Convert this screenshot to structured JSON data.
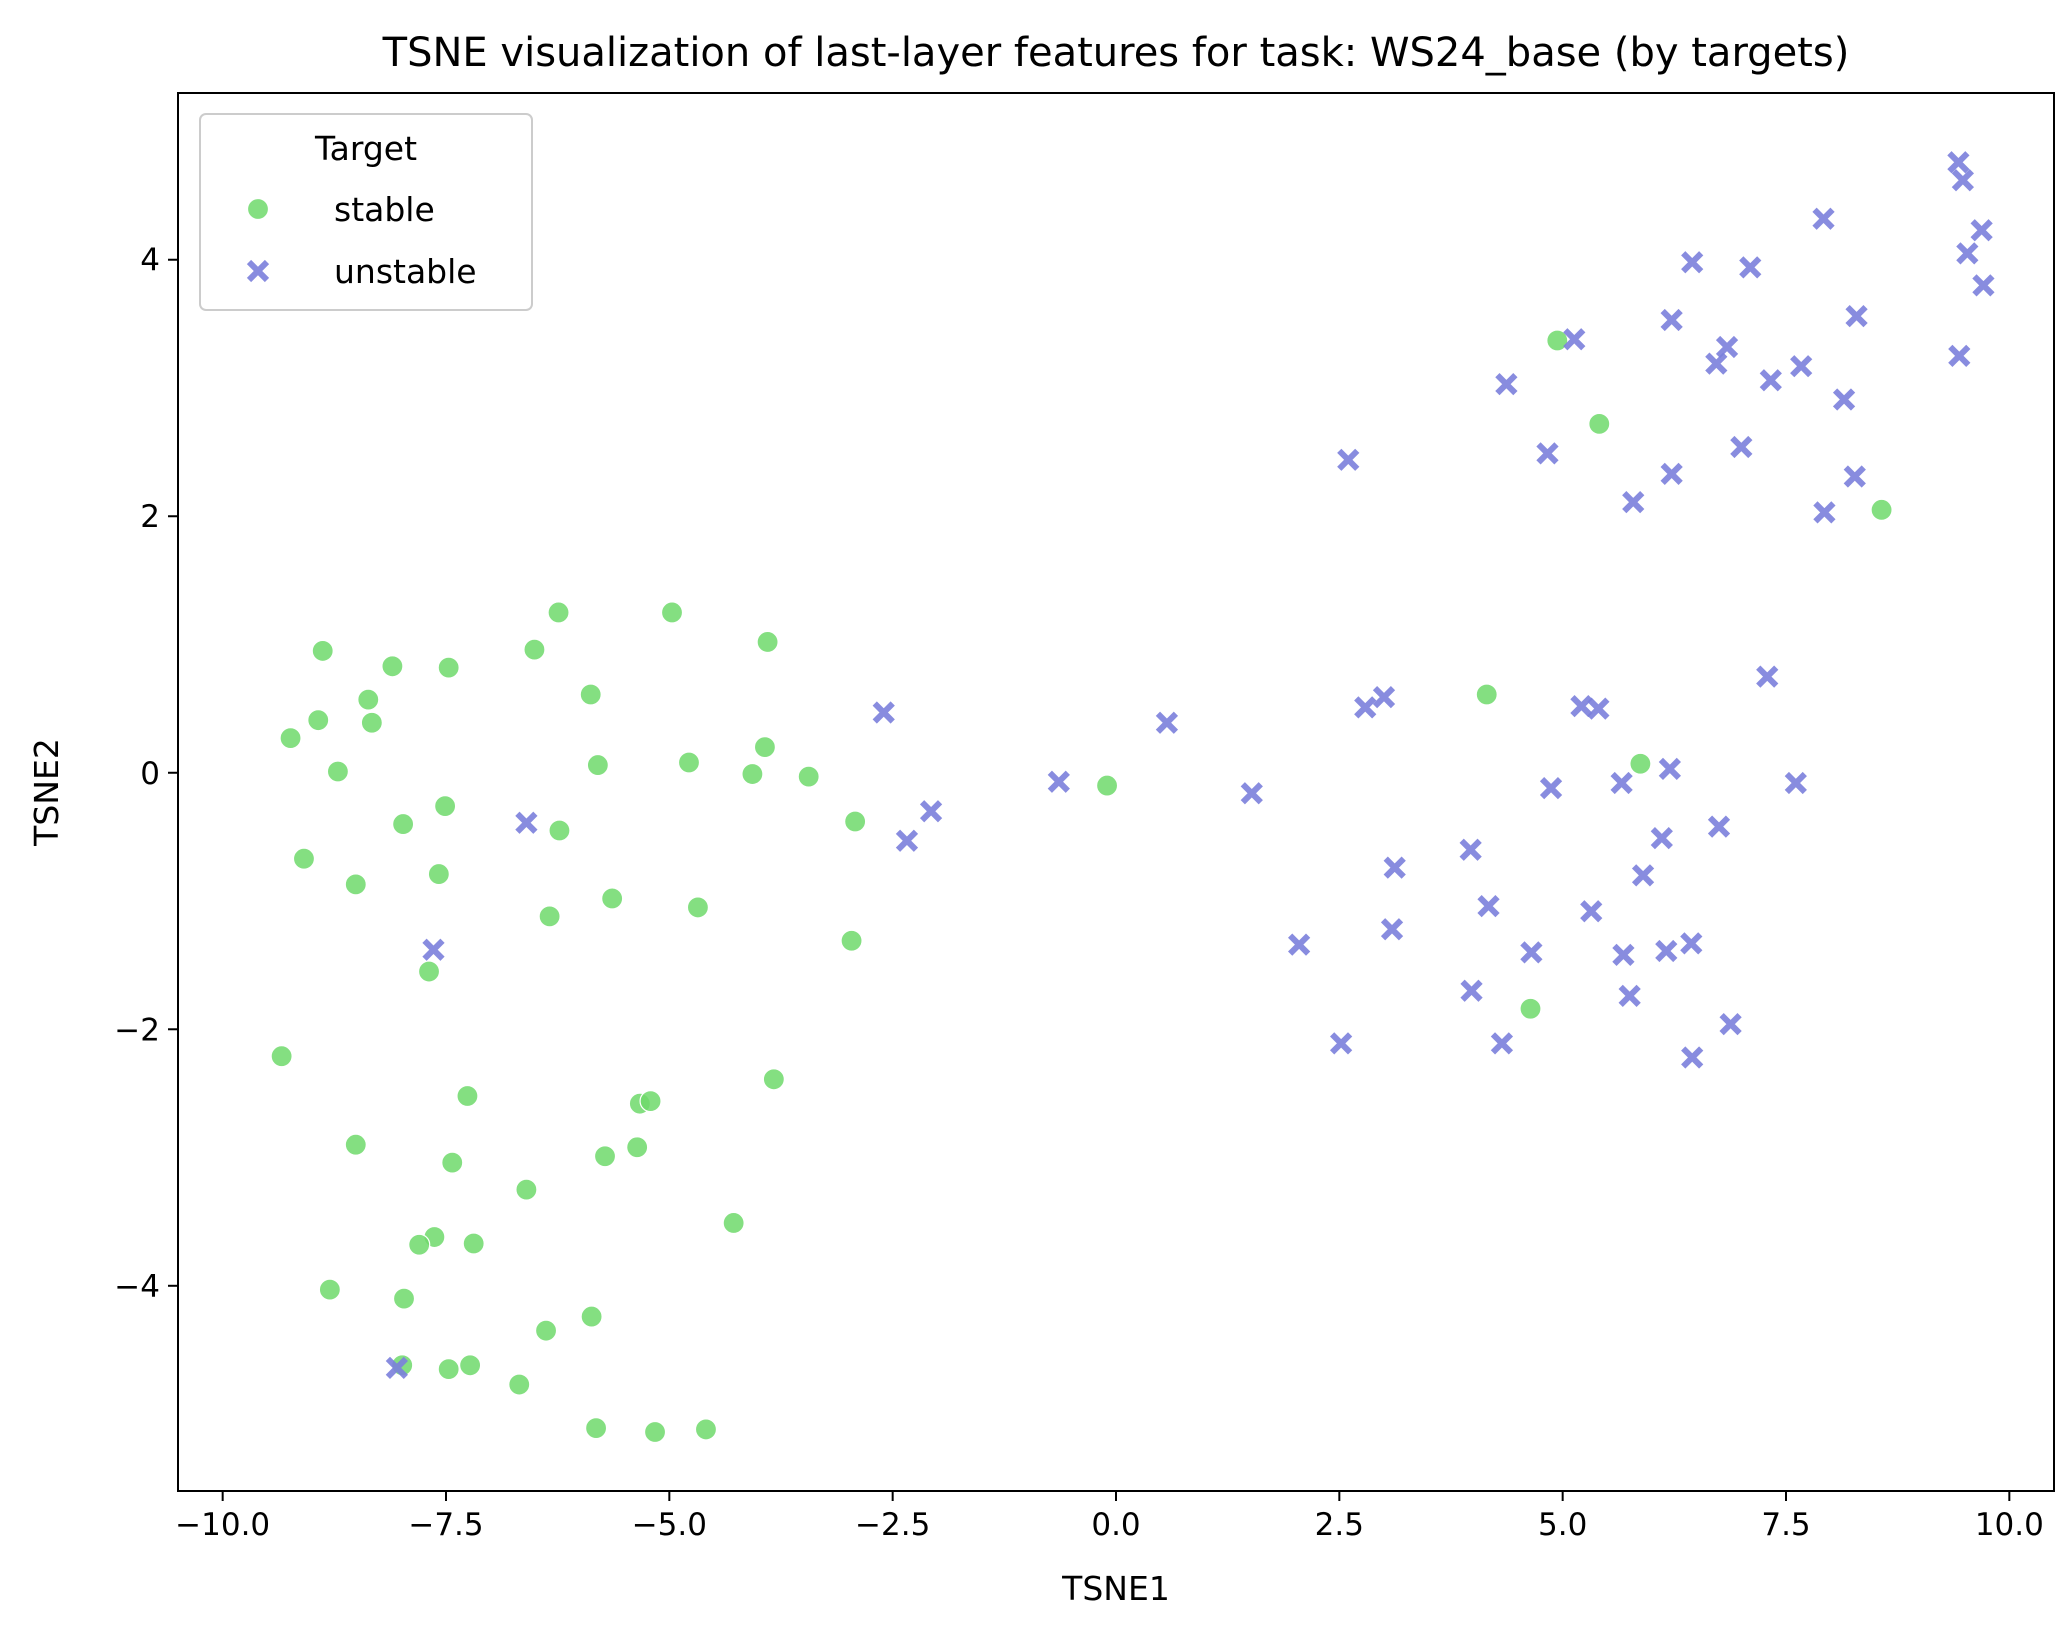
{
  "chart_data": {
    "type": "scatter",
    "title": "TSNE visualization of last-layer features for task: WS24_base (by targets)",
    "xlabel": "TSNE1",
    "ylabel": "TSNE2",
    "xlim": [
      -10.5,
      10.5
    ],
    "ylim": [
      -5.6,
      5.3
    ],
    "xticks": [
      -10.0,
      -7.5,
      -5.0,
      -2.5,
      0.0,
      2.5,
      5.0,
      7.5,
      10.0
    ],
    "xtick_labels": [
      "−10.0",
      "−7.5",
      "−5.0",
      "−2.5",
      "0.0",
      "2.5",
      "5.0",
      "7.5",
      "10.0"
    ],
    "yticks": [
      -4,
      -2,
      0,
      2,
      4
    ],
    "ytick_labels": [
      "−4",
      "−2",
      "0",
      "2",
      "4"
    ],
    "grid": false,
    "legend": {
      "title": "Target",
      "placement": "upper-left"
    },
    "series": [
      {
        "name": "stable",
        "marker": "circle",
        "color": "#6fd96b",
        "points": [
          [
            -9.24,
            0.27
          ],
          [
            -8.93,
            0.41
          ],
          [
            -8.88,
            0.95
          ],
          [
            -8.71,
            0.01
          ],
          [
            -8.37,
            0.57
          ],
          [
            -8.33,
            0.39
          ],
          [
            -8.1,
            0.83
          ],
          [
            -7.47,
            0.82
          ],
          [
            -6.51,
            0.96
          ],
          [
            -6.24,
            1.25
          ],
          [
            -4.97,
            1.25
          ],
          [
            -3.9,
            1.02
          ],
          [
            -5.88,
            0.61
          ],
          [
            -3.93,
            0.2
          ],
          [
            -5.8,
            0.06
          ],
          [
            -4.78,
            0.08
          ],
          [
            -4.07,
            -0.01
          ],
          [
            -3.44,
            -0.03
          ],
          [
            -7.51,
            -0.26
          ],
          [
            -7.98,
            -0.4
          ],
          [
            -2.92,
            -0.38
          ],
          [
            -6.23,
            -0.45
          ],
          [
            -9.09,
            -0.67
          ],
          [
            -8.51,
            -0.87
          ],
          [
            -7.58,
            -0.79
          ],
          [
            -6.34,
            -1.12
          ],
          [
            -5.64,
            -0.98
          ],
          [
            -4.68,
            -1.05
          ],
          [
            -2.96,
            -1.31
          ],
          [
            -7.69,
            -1.55
          ],
          [
            -9.34,
            -2.21
          ],
          [
            -3.83,
            -2.39
          ],
          [
            -7.26,
            -2.52
          ],
          [
            -5.33,
            -2.58
          ],
          [
            -5.21,
            -2.56
          ],
          [
            -8.51,
            -2.9
          ],
          [
            -7.43,
            -3.04
          ],
          [
            -5.36,
            -2.92
          ],
          [
            -5.72,
            -2.99
          ],
          [
            -6.6,
            -3.25
          ],
          [
            -4.28,
            -3.51
          ],
          [
            -7.63,
            -3.62
          ],
          [
            -7.8,
            -3.68
          ],
          [
            -7.19,
            -3.67
          ],
          [
            -8.8,
            -4.03
          ],
          [
            -7.97,
            -4.1
          ],
          [
            -5.87,
            -4.24
          ],
          [
            -6.38,
            -4.35
          ],
          [
            -7.99,
            -4.62
          ],
          [
            -7.47,
            -4.65
          ],
          [
            -7.23,
            -4.62
          ],
          [
            -6.68,
            -4.77
          ],
          [
            -5.82,
            -5.11
          ],
          [
            -5.16,
            -5.14
          ],
          [
            -4.59,
            -5.12
          ],
          [
            -0.1,
            -0.1
          ],
          [
            4.15,
            0.61
          ],
          [
            5.87,
            0.07
          ],
          [
            4.64,
            -1.84
          ],
          [
            4.94,
            3.37
          ],
          [
            5.41,
            2.72
          ],
          [
            8.57,
            2.05
          ]
        ]
      },
      {
        "name": "unstable",
        "marker": "x",
        "color": "#7b7fdb",
        "points": [
          [
            -6.6,
            -0.39
          ],
          [
            -7.64,
            -1.38
          ],
          [
            -8.05,
            -4.64
          ],
          [
            -2.6,
            0.47
          ],
          [
            -2.34,
            -0.53
          ],
          [
            -2.07,
            -0.3
          ],
          [
            -0.64,
            -0.07
          ],
          [
            0.57,
            0.39
          ],
          [
            1.52,
            -0.16
          ],
          [
            2.05,
            -1.34
          ],
          [
            2.52,
            -2.11
          ],
          [
            2.79,
            0.51
          ],
          [
            3.0,
            0.59
          ],
          [
            3.12,
            -0.74
          ],
          [
            3.09,
            -1.22
          ],
          [
            3.97,
            -0.6
          ],
          [
            4.17,
            -1.04
          ],
          [
            3.98,
            -1.7
          ],
          [
            4.32,
            -2.11
          ],
          [
            4.65,
            -1.4
          ],
          [
            4.87,
            -0.12
          ],
          [
            5.21,
            0.52
          ],
          [
            5.4,
            0.5
          ],
          [
            5.32,
            -1.08
          ],
          [
            5.66,
            -0.08
          ],
          [
            5.68,
            -1.42
          ],
          [
            5.75,
            -1.74
          ],
          [
            5.9,
            -0.8
          ],
          [
            6.11,
            -0.51
          ],
          [
            6.2,
            0.03
          ],
          [
            6.16,
            -1.39
          ],
          [
            6.44,
            -1.33
          ],
          [
            6.45,
            -2.22
          ],
          [
            6.75,
            -0.42
          ],
          [
            6.88,
            -1.96
          ],
          [
            7.29,
            0.75
          ],
          [
            7.61,
            -0.08
          ],
          [
            2.6,
            2.44
          ],
          [
            4.37,
            3.03
          ],
          [
            4.83,
            2.49
          ],
          [
            5.13,
            3.38
          ],
          [
            5.79,
            2.11
          ],
          [
            6.22,
            2.33
          ],
          [
            6.22,
            3.53
          ],
          [
            6.45,
            3.98
          ],
          [
            6.72,
            3.19
          ],
          [
            6.84,
            3.32
          ],
          [
            7.0,
            2.54
          ],
          [
            7.1,
            3.94
          ],
          [
            7.33,
            3.06
          ],
          [
            7.67,
            3.17
          ],
          [
            7.92,
            4.32
          ],
          [
            7.93,
            2.03
          ],
          [
            8.15,
            2.91
          ],
          [
            8.27,
            2.31
          ],
          [
            8.29,
            3.56
          ],
          [
            9.43,
            4.76
          ],
          [
            9.48,
            4.62
          ],
          [
            9.53,
            4.05
          ],
          [
            9.69,
            4.23
          ],
          [
            9.71,
            3.8
          ],
          [
            9.44,
            3.25
          ]
        ]
      }
    ]
  }
}
